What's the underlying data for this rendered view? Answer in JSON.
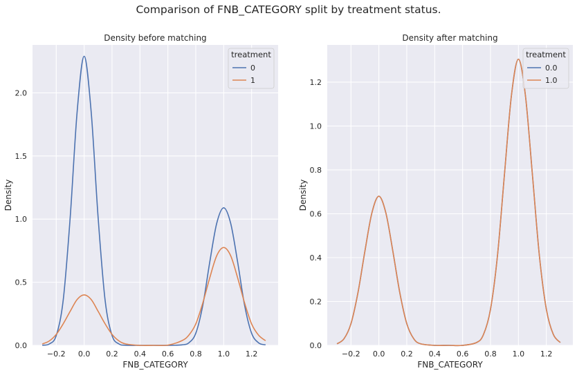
{
  "suptitle": "Comparison of FNB_CATEGORY split by treatment status.",
  "colors": {
    "blue": "#4c72b0",
    "orange": "#dd8452",
    "bg": "#eaeaf2",
    "grid": "#ffffff"
  },
  "chart_data": [
    {
      "type": "line",
      "title": "Density before matching",
      "xlabel": "FNB_CATEGORY",
      "ylabel": "Density",
      "xlim": [
        -0.37,
        1.39
      ],
      "ylim": [
        0,
        2.38
      ],
      "xticks": [
        -0.2,
        0.0,
        0.2,
        0.4,
        0.6,
        0.8,
        1.0,
        1.2
      ],
      "xtick_labels": [
        "−0.2",
        "0.0",
        "0.2",
        "0.4",
        "0.6",
        "0.8",
        "1.0",
        "1.2"
      ],
      "yticks": [
        0,
        0.5,
        1.0,
        1.5,
        2.0
      ],
      "ytick_labels": [
        "0.0",
        "0.5",
        "1.0",
        "1.5",
        "2.0"
      ],
      "grid": true,
      "legend": {
        "title": "treatment",
        "placement": "top-right"
      },
      "series": [
        {
          "name": "0",
          "color": "#4c72b0",
          "x": [
            -0.3,
            -0.25,
            -0.2,
            -0.15,
            -0.1,
            -0.05,
            0.0,
            0.05,
            0.1,
            0.15,
            0.2,
            0.25,
            0.3,
            0.4,
            0.5,
            0.6,
            0.7,
            0.75,
            0.8,
            0.85,
            0.9,
            0.95,
            1.0,
            1.05,
            1.1,
            1.15,
            1.2,
            1.25,
            1.3
          ],
          "y": [
            0.001,
            0.011,
            0.078,
            0.359,
            1.014,
            1.854,
            2.29,
            1.854,
            1.014,
            0.359,
            0.078,
            0.011,
            0.001,
            0.0,
            0.0,
            0.0,
            0.004,
            0.02,
            0.096,
            0.316,
            0.659,
            0.967,
            1.09,
            0.967,
            0.659,
            0.316,
            0.096,
            0.02,
            0.004
          ]
        },
        {
          "name": "1",
          "color": "#dd8452",
          "x": [
            -0.3,
            -0.25,
            -0.2,
            -0.15,
            -0.1,
            -0.05,
            0.0,
            0.05,
            0.1,
            0.15,
            0.2,
            0.25,
            0.3,
            0.4,
            0.5,
            0.6,
            0.7,
            0.75,
            0.8,
            0.85,
            0.9,
            0.95,
            1.0,
            1.05,
            1.1,
            1.15,
            1.2,
            1.25,
            1.3
          ],
          "y": [
            0.011,
            0.035,
            0.087,
            0.171,
            0.27,
            0.364,
            0.4,
            0.364,
            0.27,
            0.171,
            0.087,
            0.035,
            0.011,
            0.0,
            0.0,
            0.002,
            0.037,
            0.081,
            0.17,
            0.335,
            0.535,
            0.71,
            0.775,
            0.71,
            0.535,
            0.335,
            0.17,
            0.081,
            0.037
          ]
        }
      ]
    },
    {
      "type": "line",
      "title": "Density after matching",
      "xlabel": "FNB_CATEGORY",
      "ylabel": "Density",
      "xlim": [
        -0.37,
        1.39
      ],
      "ylim": [
        0,
        1.37
      ],
      "xticks": [
        -0.2,
        0.0,
        0.2,
        0.4,
        0.6,
        0.8,
        1.0,
        1.2
      ],
      "xtick_labels": [
        "−0.2",
        "0.0",
        "0.2",
        "0.4",
        "0.6",
        "0.8",
        "1.0",
        "1.2"
      ],
      "yticks": [
        0,
        0.2,
        0.4,
        0.6,
        0.8,
        1.0,
        1.2
      ],
      "ytick_labels": [
        "0.0",
        "0.2",
        "0.4",
        "0.6",
        "0.8",
        "1.0",
        "1.2"
      ],
      "grid": true,
      "legend": {
        "title": "treatment",
        "placement": "top-right"
      },
      "series": [
        {
          "name": "0.0",
          "color": "#4c72b0",
          "x": [
            -0.3,
            -0.25,
            -0.2,
            -0.15,
            -0.1,
            -0.05,
            0.0,
            0.05,
            0.1,
            0.15,
            0.2,
            0.25,
            0.3,
            0.4,
            0.5,
            0.6,
            0.7,
            0.75,
            0.8,
            0.85,
            0.9,
            0.95,
            1.0,
            1.05,
            1.1,
            1.15,
            1.2,
            1.25,
            1.3
          ],
          "y": [
            0.007,
            0.03,
            0.099,
            0.24,
            0.43,
            0.604,
            0.68,
            0.604,
            0.43,
            0.24,
            0.099,
            0.03,
            0.007,
            0.0,
            0.0,
            0.0,
            0.013,
            0.05,
            0.165,
            0.41,
            0.78,
            1.14,
            1.305,
            1.14,
            0.78,
            0.41,
            0.165,
            0.05,
            0.013
          ]
        },
        {
          "name": "1.0",
          "color": "#dd8452",
          "x": [
            -0.3,
            -0.25,
            -0.2,
            -0.15,
            -0.1,
            -0.05,
            0.0,
            0.05,
            0.1,
            0.15,
            0.2,
            0.25,
            0.3,
            0.4,
            0.5,
            0.6,
            0.7,
            0.75,
            0.8,
            0.85,
            0.9,
            0.95,
            1.0,
            1.05,
            1.1,
            1.15,
            1.2,
            1.25,
            1.3
          ],
          "y": [
            0.007,
            0.03,
            0.099,
            0.24,
            0.43,
            0.604,
            0.68,
            0.604,
            0.43,
            0.24,
            0.099,
            0.03,
            0.007,
            0.0,
            0.0,
            0.0,
            0.013,
            0.05,
            0.165,
            0.41,
            0.78,
            1.14,
            1.305,
            1.14,
            0.78,
            0.41,
            0.165,
            0.05,
            0.013
          ]
        }
      ]
    }
  ]
}
